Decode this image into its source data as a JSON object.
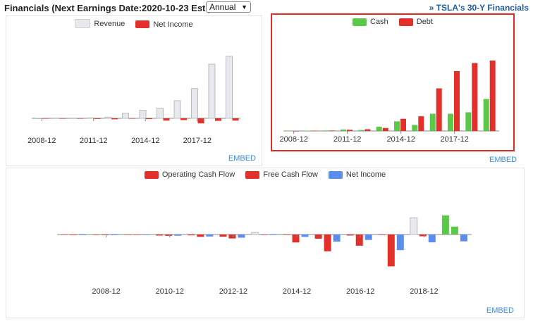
{
  "header": {
    "title": "Financials (Next Earnings Date:2020-10-23 Est.)",
    "period_select": "Annual",
    "link_30y": "» TSLA's 30-Y Financials"
  },
  "embed_label": "EMBED",
  "colors": {
    "revenue": "#e8e9ec",
    "net_income": "#e3302a",
    "cash": "#5cc84a",
    "debt": "#e3302a",
    "operating_cash_flow": "#e3302a",
    "free_cash_flow": "#e3302a",
    "net_income_blue": "#5b8def",
    "highlight_border": "#e32b22",
    "link": "#1f5fa8"
  },
  "chart_data": [
    {
      "type": "bar",
      "categories": [
        "2008-12",
        "2009-12",
        "2010-12",
        "2011-12",
        "2012-12",
        "2013-12",
        "2014-12",
        "2015-12",
        "2016-12",
        "2017-12",
        "2018-12",
        "2019-12"
      ],
      "x_tick_labels": [
        "2008-12",
        "2011-12",
        "2014-12",
        "2017-12"
      ],
      "series": [
        {
          "name": "Revenue",
          "values": [
            0.01,
            0.11,
            0.12,
            0.2,
            0.4,
            2.0,
            3.2,
            4.0,
            7.0,
            11.8,
            21.5,
            24.6
          ]
        },
        {
          "name": "Net Income",
          "values": [
            -0.08,
            -0.06,
            -0.15,
            -0.25,
            -0.4,
            -0.07,
            -0.3,
            -0.9,
            -0.7,
            -2.0,
            -1.0,
            -0.9
          ]
        }
      ],
      "ylim": [
        -3,
        26
      ],
      "legend": "top-center"
    },
    {
      "type": "bar",
      "categories": [
        "2008-12",
        "2009-12",
        "2010-12",
        "2011-12",
        "2012-12",
        "2013-12",
        "2014-12",
        "2015-12",
        "2016-12",
        "2017-12",
        "2018-12",
        "2019-12"
      ],
      "x_tick_labels": [
        "2008-12",
        "2011-12",
        "2014-12",
        "2017-12"
      ],
      "series": [
        {
          "name": "Cash",
          "values": [
            0.01,
            0.07,
            0.1,
            0.3,
            0.2,
            0.85,
            1.9,
            1.2,
            3.4,
            3.4,
            3.7,
            6.3
          ]
        },
        {
          "name": "Debt",
          "values": [
            0.0,
            0.05,
            0.1,
            0.25,
            0.35,
            0.6,
            2.4,
            2.9,
            8.4,
            11.8,
            13.4,
            13.9
          ]
        }
      ],
      "ylim": [
        0,
        15
      ],
      "legend": "top-center"
    },
    {
      "type": "bar",
      "categories": [
        "2007-12",
        "2008-12",
        "2009-12",
        "2010-12",
        "2011-12",
        "2012-12",
        "2013-12",
        "2014-12",
        "2015-12",
        "2016-12",
        "2017-12",
        "2018-12",
        "2019-12"
      ],
      "x_tick_labels": [
        "2008-12",
        "2010-12",
        "2012-12",
        "2014-12",
        "2016-12",
        "2018-12"
      ],
      "series": [
        {
          "name": "Operating Cash Flow",
          "values": [
            -0.05,
            -0.05,
            -0.03,
            -0.13,
            -0.11,
            -0.27,
            0.26,
            -0.06,
            -0.52,
            -0.12,
            -0.06,
            2.1,
            2.4
          ]
        },
        {
          "name": "Free Cash Flow",
          "values": [
            -0.06,
            -0.07,
            -0.05,
            -0.17,
            -0.29,
            -0.49,
            -0.01,
            -1.0,
            -2.1,
            -1.4,
            -4.0,
            -0.22,
            1.0
          ]
        },
        {
          "name": "Net Income",
          "values": [
            -0.08,
            -0.08,
            -0.06,
            -0.15,
            -0.25,
            -0.4,
            -0.07,
            -0.29,
            -0.89,
            -0.68,
            -1.96,
            -0.98,
            -0.86
          ]
        }
      ],
      "ylim": [
        -4.5,
        3
      ],
      "legend": "top-center"
    }
  ]
}
